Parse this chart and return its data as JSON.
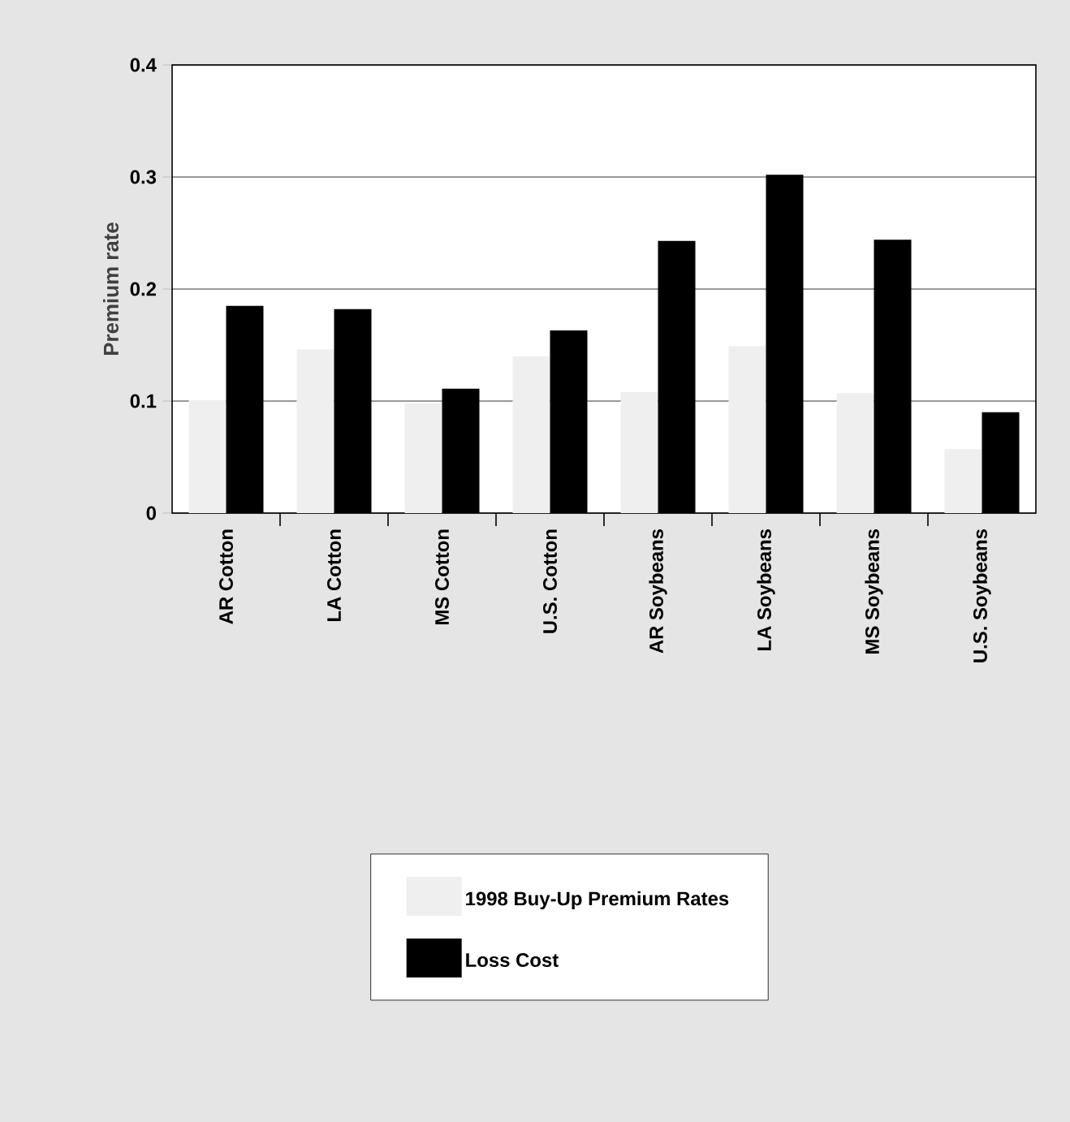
{
  "chart_data": {
    "type": "bar",
    "ylabel": "Premium rate",
    "categories": [
      "AR Cotton",
      "LA Cotton",
      "MS Cotton",
      "U.S. Cotton",
      "AR Soybeans",
      "LA Soybeans",
      "MS Soybeans",
      "U.S. Soybeans"
    ],
    "series": [
      {
        "name": "1998 Buy-Up Premium Rates",
        "color": "#efefef",
        "values": [
          0.101,
          0.146,
          0.098,
          0.14,
          0.108,
          0.149,
          0.107,
          0.057
        ]
      },
      {
        "name": "Loss Cost",
        "color": "#000000",
        "values": [
          0.185,
          0.182,
          0.111,
          0.163,
          0.243,
          0.302,
          0.244,
          0.09
        ]
      }
    ],
    "ylim": [
      0,
      0.4
    ],
    "yticks": [
      {
        "value": 0,
        "label": "0"
      },
      0.1,
      0.2,
      0.3,
      0.4
    ],
    "grid": "y",
    "legend": "bottom"
  }
}
